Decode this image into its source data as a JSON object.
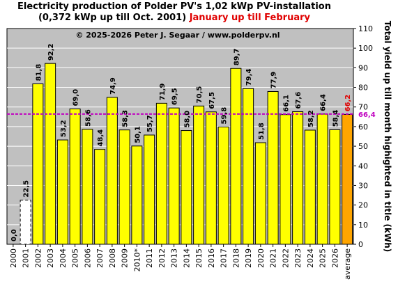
{
  "chart_data": {
    "type": "bar",
    "title_line1": "Electricity production  of Polder  PV's  1,02 kWp PV-installation",
    "title_line2": "(0,372 kWp up till Oct. 2001)",
    "title_highlight": "January up till February",
    "copyright": "© 2025-2026 Peter J. Segaar / www.polderpv.nl",
    "ylabel": "Total yield up till month highighted in title (kWh)",
    "xlabel": "",
    "ylim": [
      0,
      110
    ],
    "yticks": [
      0,
      10,
      20,
      30,
      40,
      50,
      60,
      70,
      80,
      90,
      100,
      110
    ],
    "grid": true,
    "categories": [
      "2000",
      "2001",
      "2002",
      "2003",
      "2004",
      "2005",
      "2006",
      "2007",
      "2008",
      "2009",
      "2010*",
      "2011",
      "2012",
      "2013",
      "2014",
      "2015",
      "2016",
      "2017",
      "2018",
      "2019",
      "2020",
      "2021",
      "2022",
      "2023",
      "2024",
      "2025",
      "2026",
      "average"
    ],
    "values": [
      0.0,
      22.5,
      81.8,
      92.2,
      53.2,
      69.0,
      58.6,
      48.4,
      74.9,
      58.3,
      50.1,
      55.7,
      71.9,
      69.5,
      58.0,
      70.5,
      67.5,
      59.8,
      89.7,
      79.4,
      51.8,
      77.9,
      66.1,
      67.6,
      58.2,
      66.4,
      58.4,
      66.2
    ],
    "value_labels": [
      "0,0",
      "22,5",
      "81,8",
      "92,2",
      "53,2",
      "69,0",
      "58,6",
      "48,4",
      "74,9",
      "58,3",
      "50,1",
      "55,7",
      "71,9",
      "69,5",
      "58,0",
      "70,5",
      "67,5",
      "59,8",
      "89,7",
      "79,4",
      "51,8",
      "77,9",
      "66,1",
      "67,6",
      "58,2",
      "66,4",
      "58,4",
      "66,2"
    ],
    "reference_line": {
      "value": 66.4,
      "label": "66,4",
      "color": "#c000c0"
    },
    "colors": {
      "bar": "#ffff00",
      "average_bar": "#ffa500",
      "average_label": "#e00000",
      "partial_year_bar": "#ffffff",
      "plot_bg": "#c0c0c0",
      "grid": "#ffffff"
    }
  }
}
